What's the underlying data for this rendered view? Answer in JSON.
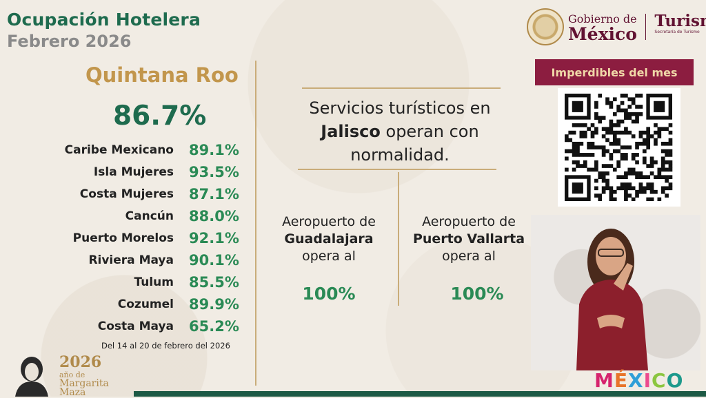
{
  "header": {
    "title": "Ocupación Hotelera",
    "subtitle": "Febrero 2026"
  },
  "state": {
    "name": "Quintana Roo",
    "occupancy": "86.7%"
  },
  "destinations": [
    {
      "name": "Caribe Mexicano",
      "value": "89.1%"
    },
    {
      "name": "Isla Mujeres",
      "value": "93.5%"
    },
    {
      "name": "Costa Mujeres",
      "value": "87.1%"
    },
    {
      "name": "Cancún",
      "value": "88.0%"
    },
    {
      "name": "Puerto Morelos",
      "value": "92.1%"
    },
    {
      "name": "Riviera Maya",
      "value": "90.1%"
    },
    {
      "name": "Tulum",
      "value": "85.5%"
    },
    {
      "name": "Cozumel",
      "value": "89.9%"
    },
    {
      "name": "Costa Maya",
      "value": "65.2%"
    }
  ],
  "date_range": "Del 14 al 20 de febrero del 2026",
  "notice": {
    "line1": "Servicios turísticos en",
    "state": "Jalisco",
    "line2_rest": " operan con",
    "line3": "normalidad."
  },
  "airports": [
    {
      "prefix": "Aeropuerto de",
      "name": "Guadalajara",
      "suffix": "opera al",
      "value": "100%"
    },
    {
      "prefix": "Aeropuerto de",
      "name": "Puerto Vallarta",
      "suffix": "opera al",
      "value": "100%"
    }
  ],
  "gov_logo": {
    "top": "Gobierno de",
    "country": "México",
    "agency": "Turism",
    "agency_sub": "Secretaría de Turismo"
  },
  "banner": {
    "label": "Imperdibles del mes"
  },
  "commemoration": {
    "year": "2026",
    "line2": "año de",
    "line3": "Margarita",
    "line4": "Maza"
  },
  "brand": {
    "letters": [
      "M",
      "É",
      "X",
      "I",
      "C",
      "O"
    ],
    "colors": [
      "#d6246e",
      "#e8742a",
      "#2f9fd8",
      "#ec4a8e",
      "#8cc63f",
      "#1e9a8c"
    ]
  },
  "colors": {
    "accent_green": "#1e6b4e",
    "value_green": "#2a8a55",
    "gold": "#c2964c",
    "guinda": "#8c1d40"
  }
}
